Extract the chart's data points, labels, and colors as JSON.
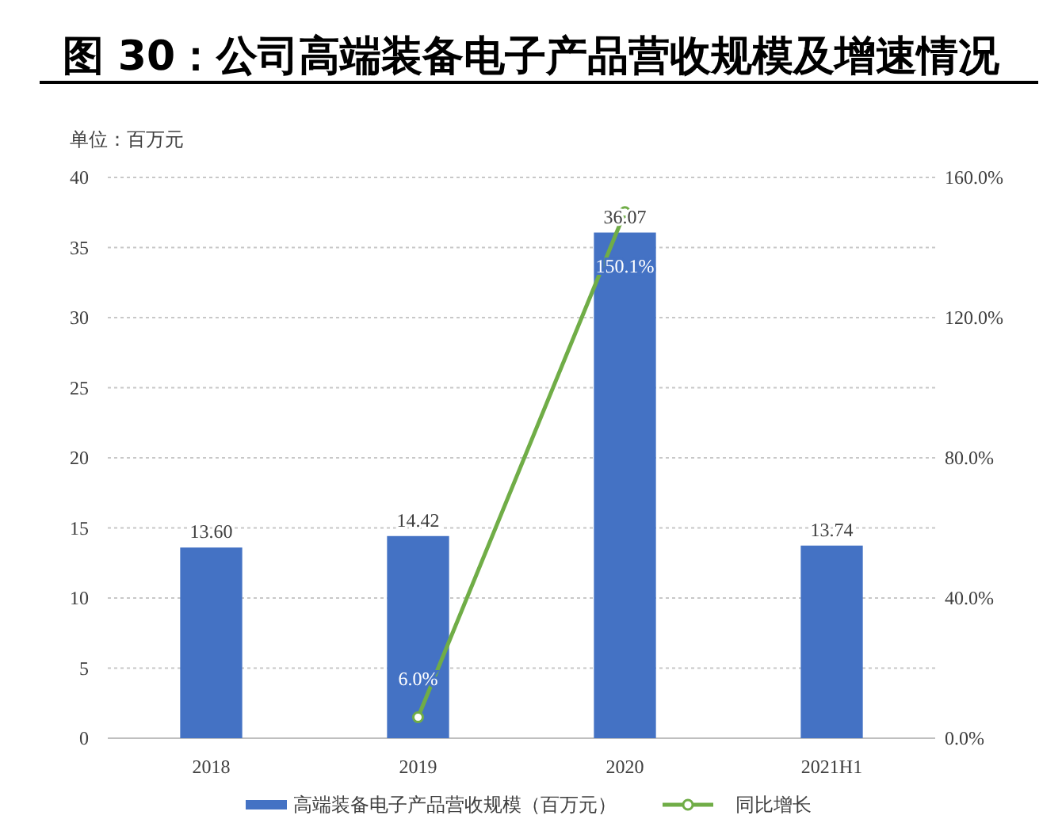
{
  "chart_data": {
    "type": "bar",
    "title": "图  30：公司高端装备电子产品营收规模及增速情况",
    "annotations": [
      "单位：百万元"
    ],
    "categories": [
      "2018",
      "2019",
      "2020",
      "2021H1"
    ],
    "series": [
      {
        "name": "高端装备电子产品营收规模（百万元）",
        "color": "#4472c4",
        "values": [
          13.6,
          14.42,
          36.07,
          13.74
        ],
        "value_labels": [
          "13.60",
          "14.42",
          "36.07",
          "13.74"
        ]
      },
      {
        "name": "同比增长",
        "type": "line",
        "axis": "y2",
        "color": "#70ad47",
        "marker": "circle",
        "values": [
          null,
          6.0,
          150.1,
          null
        ],
        "value_labels": [
          null,
          "6.0%",
          "150.1%",
          null
        ]
      }
    ],
    "ylim": [
      0,
      40
    ],
    "yticks": [
      0,
      5,
      10,
      15,
      20,
      25,
      30,
      35,
      40
    ],
    "y2lim": [
      0,
      160
    ],
    "y2ticks": [
      {
        "value": 0,
        "label": "0.0%"
      },
      {
        "value": 40,
        "label": "40.0%"
      },
      {
        "value": 80,
        "label": "80.0%"
      },
      {
        "value": 120,
        "label": "120.0%"
      },
      {
        "value": 160,
        "label": "160.0%"
      }
    ],
    "grid": "y",
    "legend": "bottom"
  }
}
